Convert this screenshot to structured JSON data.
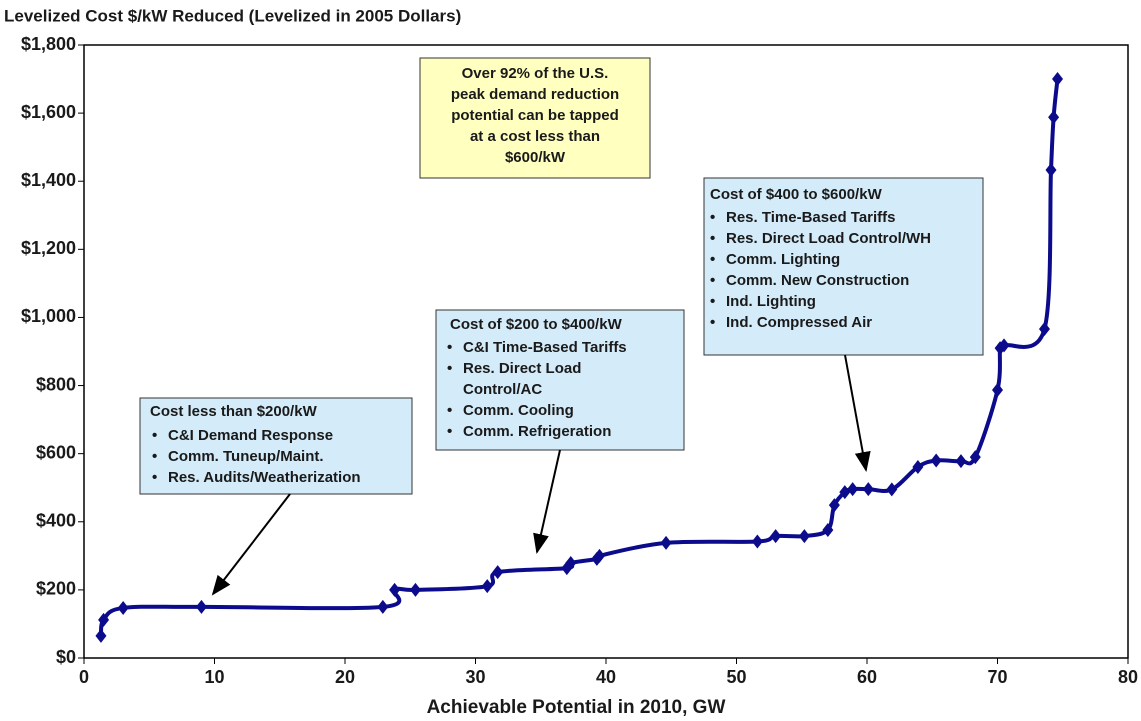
{
  "chart_data": {
    "type": "line",
    "title": "Levelized Cost $/kW Reduced (Levelized in 2005 Dollars)",
    "x_label": "Achievable Potential in 2010, GW",
    "x": [
      1.3,
      1.5,
      3,
      9,
      22.9,
      23.8,
      25.4,
      30.9,
      31.7,
      37.0,
      37.3,
      39.3,
      39.5,
      44.6,
      51.6,
      53,
      55.2,
      57.0,
      57.5,
      58.3,
      58.9,
      60.1,
      61.9,
      63.9,
      65.3,
      67.2,
      68.3,
      70.0,
      70.2,
      70.5,
      73.6,
      74.1,
      74.3,
      74.6
    ],
    "series": [
      {
        "color": "#0b0b8c",
        "values": [
          65,
          112,
          147,
          150,
          150,
          200,
          200,
          211,
          252,
          264,
          279,
          291,
          300,
          338,
          342,
          358,
          358,
          376,
          449,
          487,
          496,
          496,
          495,
          561,
          580,
          578,
          590,
          787,
          910,
          918,
          966,
          1433,
          1588,
          1700
        ]
      }
    ],
    "xlim": [
      0,
      80
    ],
    "xticks": [
      0,
      10,
      20,
      30,
      40,
      50,
      60,
      70,
      80
    ],
    "ylim": [
      0,
      1800
    ],
    "yticks": [
      {
        "value": 0,
        "label": "$0"
      },
      {
        "value": 200,
        "label": "$200"
      },
      {
        "value": 400,
        "label": "$400"
      },
      {
        "value": 600,
        "label": "$600"
      },
      {
        "value": 800,
        "label": "$800"
      },
      {
        "value": 1000,
        "label": "$1,000"
      },
      {
        "value": 1200,
        "label": "$1,200"
      },
      {
        "value": 1400,
        "label": "$1,400"
      },
      {
        "value": 1600,
        "label": "$1,600"
      },
      {
        "value": 1800,
        "label": "$1,800"
      }
    ],
    "annotations": {
      "summary": [
        "Over 92% of the U.S.",
        "peak demand reduction",
        "potential can be tapped",
        "at a cost less than",
        "$600/kW"
      ],
      "low": {
        "title": "Cost less than $200/kW",
        "items": [
          "C&I Demand Response",
          "Comm. Tuneup/Maint.",
          "Res. Audits/Weatherization"
        ]
      },
      "mid": {
        "title": "Cost of $200 to $400/kW",
        "items": [
          "C&I Time-Based Tariffs",
          "Res. Direct Load",
          "Control/AC",
          "Comm. Cooling",
          "Comm. Refrigeration"
        ]
      },
      "high": {
        "title": "Cost of $400 to $600/kW",
        "items": [
          "Res. Time-Based Tariffs",
          "Res. Direct Load Control/WH",
          "Comm. Lighting",
          "Comm. New Construction",
          "Ind. Lighting",
          "Ind. Compressed Air"
        ]
      }
    }
  }
}
